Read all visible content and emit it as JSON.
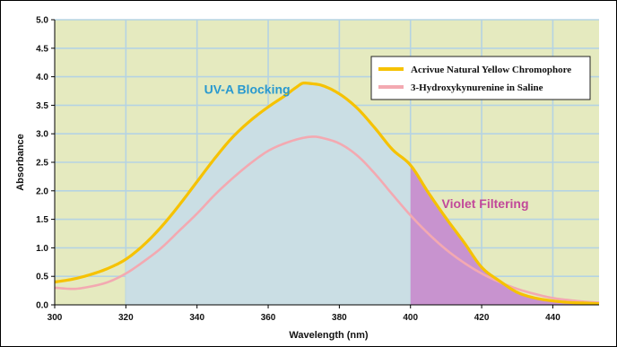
{
  "chart_data": {
    "type": "line",
    "title": "",
    "xlabel": "Wavelength (nm)",
    "ylabel": "Absorbance",
    "xlim": [
      300,
      453
    ],
    "ylim": [
      0,
      5.0
    ],
    "x_ticks": [
      300,
      320,
      340,
      360,
      380,
      400,
      420,
      440
    ],
    "y_ticks": [
      "0.0",
      "0.5",
      "1.0",
      "1.5",
      "2.0",
      "2.5",
      "3.0",
      "3.5",
      "4.0",
      "4.5",
      "5.0"
    ],
    "grid": true,
    "legend_position": "top-right",
    "colors": {
      "background": "#e5eabf",
      "grid": "#b5d3e3",
      "uva_fill": "#cadee4",
      "violet_fill": "#c893cf",
      "uva_text": "#2999cf",
      "violet_text": "#c2489a",
      "series_yellow": "#f6c200",
      "series_pink": "#f3a9b1"
    },
    "annotations": [
      {
        "text": "UV-A Blocking",
        "x": 342,
        "y": 3.7
      },
      {
        "text": "Violet Filtering",
        "x": 421,
        "y": 1.7
      }
    ],
    "shaded_regions": [
      {
        "name": "uva",
        "x_start": 320,
        "x_end": 400
      },
      {
        "name": "violet",
        "x_start": 400,
        "x_end": 453
      }
    ],
    "series": [
      {
        "name": "Acrivue Natural Yellow  Chromophore",
        "color": "#f6c200",
        "x": [
          300,
          305,
          310,
          315,
          320,
          325,
          330,
          335,
          340,
          345,
          350,
          355,
          360,
          365,
          368,
          370,
          372,
          375,
          380,
          385,
          390,
          395,
          400,
          405,
          410,
          415,
          420,
          425,
          430,
          435,
          440,
          445,
          450,
          453
        ],
        "y": [
          0.4,
          0.45,
          0.53,
          0.64,
          0.8,
          1.05,
          1.37,
          1.75,
          2.16,
          2.57,
          2.94,
          3.23,
          3.47,
          3.68,
          3.82,
          3.89,
          3.88,
          3.85,
          3.7,
          3.45,
          3.1,
          2.72,
          2.45,
          1.97,
          1.52,
          1.1,
          0.66,
          0.42,
          0.22,
          0.12,
          0.07,
          0.04,
          0.03,
          0.02
        ]
      },
      {
        "name": "3-Hydroxykynurenine in Saline",
        "color": "#f3a9b1",
        "x": [
          300,
          305,
          310,
          315,
          320,
          325,
          330,
          335,
          340,
          345,
          350,
          355,
          360,
          365,
          370,
          373,
          375,
          380,
          385,
          390,
          395,
          400,
          405,
          410,
          415,
          420,
          425,
          430,
          435,
          440,
          445,
          450,
          453
        ],
        "y": [
          0.3,
          0.28,
          0.32,
          0.4,
          0.55,
          0.76,
          1.0,
          1.3,
          1.6,
          1.93,
          2.22,
          2.48,
          2.7,
          2.84,
          2.93,
          2.95,
          2.93,
          2.83,
          2.62,
          2.3,
          1.93,
          1.57,
          1.25,
          0.97,
          0.74,
          0.55,
          0.4,
          0.28,
          0.19,
          0.12,
          0.08,
          0.05,
          0.04
        ]
      }
    ]
  }
}
